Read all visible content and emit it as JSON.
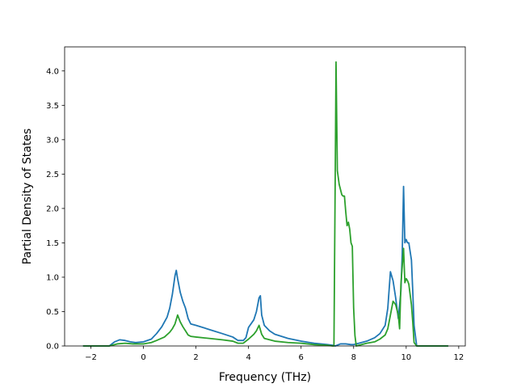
{
  "chart_data": {
    "type": "line",
    "title": "",
    "xlabel": "Frequency (THz)",
    "ylabel": "Partial Density of States",
    "xlim": [
      -3.0,
      12.25
    ],
    "ylim": [
      0.0,
      4.35
    ],
    "xticks": [
      -2,
      0,
      2,
      4,
      6,
      8,
      10,
      12
    ],
    "xtick_labels": [
      "−2",
      "0",
      "2",
      "4",
      "6",
      "8",
      "10",
      "12"
    ],
    "yticks": [
      0.0,
      0.5,
      1.0,
      1.5,
      2.0,
      2.5,
      3.0,
      3.5,
      4.0
    ],
    "ytick_labels": [
      "0.0",
      "0.5",
      "1.0",
      "1.5",
      "2.0",
      "2.5",
      "3.0",
      "3.5",
      "4.0"
    ],
    "grid": false,
    "legend": "none",
    "series": [
      {
        "color": "#1f77b4",
        "x": [
          -2.3,
          -1.3,
          -1.1,
          -0.9,
          -0.7,
          -0.5,
          -0.3,
          0.0,
          0.3,
          0.5,
          0.7,
          0.9,
          1.0,
          1.1,
          1.2,
          1.25,
          1.3,
          1.4,
          1.5,
          1.6,
          1.7,
          1.8,
          2.0,
          2.5,
          3.0,
          3.4,
          3.6,
          3.8,
          3.9,
          4.0,
          4.2,
          4.3,
          4.4,
          4.45,
          4.5,
          4.6,
          4.8,
          5.0,
          5.5,
          6.0,
          6.5,
          7.0,
          7.2,
          7.3,
          7.5,
          7.7,
          7.9,
          8.0,
          8.2,
          8.5,
          8.8,
          9.0,
          9.2,
          9.3,
          9.4,
          9.5,
          9.6,
          9.7,
          9.8,
          9.85,
          9.9,
          9.95,
          10.0,
          10.05,
          10.1,
          10.2,
          10.25,
          10.3,
          10.4,
          10.5,
          11.6
        ],
        "values": [
          0.0,
          0.0,
          0.06,
          0.09,
          0.08,
          0.06,
          0.05,
          0.06,
          0.1,
          0.18,
          0.28,
          0.42,
          0.55,
          0.75,
          1.02,
          1.1,
          0.98,
          0.78,
          0.65,
          0.55,
          0.4,
          0.32,
          0.3,
          0.24,
          0.18,
          0.13,
          0.08,
          0.08,
          0.12,
          0.27,
          0.38,
          0.5,
          0.7,
          0.73,
          0.45,
          0.3,
          0.22,
          0.17,
          0.11,
          0.07,
          0.04,
          0.02,
          0.01,
          0.0,
          0.03,
          0.03,
          0.02,
          0.02,
          0.04,
          0.07,
          0.12,
          0.18,
          0.3,
          0.55,
          1.08,
          0.95,
          0.7,
          0.4,
          0.8,
          1.35,
          2.32,
          1.5,
          1.55,
          1.5,
          1.5,
          1.25,
          0.8,
          0.3,
          0.0,
          0.0,
          0.0
        ]
      },
      {
        "color": "#2ca02c",
        "x": [
          -2.3,
          -1.3,
          -1.0,
          -0.7,
          -0.4,
          0.0,
          0.3,
          0.5,
          0.8,
          1.0,
          1.1,
          1.2,
          1.3,
          1.4,
          1.5,
          1.6,
          1.7,
          1.8,
          2.0,
          2.5,
          3.0,
          3.4,
          3.6,
          3.8,
          4.0,
          4.2,
          4.3,
          4.4,
          4.5,
          4.6,
          5.0,
          5.5,
          6.0,
          6.5,
          7.0,
          7.2,
          7.25,
          7.3,
          7.33,
          7.38,
          7.45,
          7.55,
          7.6,
          7.65,
          7.7,
          7.75,
          7.8,
          7.85,
          7.9,
          7.95,
          8.0,
          8.05,
          8.1,
          8.2,
          8.5,
          8.8,
          9.0,
          9.2,
          9.3,
          9.4,
          9.5,
          9.6,
          9.7,
          9.75,
          9.8,
          9.9,
          9.95,
          10.0,
          10.05,
          10.1,
          10.2,
          10.25,
          10.3,
          10.4,
          10.5,
          11.6
        ],
        "values": [
          0.0,
          0.0,
          0.03,
          0.04,
          0.03,
          0.03,
          0.05,
          0.08,
          0.13,
          0.2,
          0.25,
          0.32,
          0.45,
          0.35,
          0.28,
          0.22,
          0.16,
          0.14,
          0.13,
          0.11,
          0.09,
          0.07,
          0.04,
          0.04,
          0.1,
          0.17,
          0.22,
          0.3,
          0.17,
          0.11,
          0.07,
          0.05,
          0.04,
          0.02,
          0.01,
          0.0,
          0.0,
          2.5,
          4.13,
          2.55,
          2.35,
          2.2,
          2.18,
          2.18,
          1.95,
          1.75,
          1.8,
          1.7,
          1.5,
          1.45,
          0.55,
          0.15,
          0.0,
          0.01,
          0.04,
          0.06,
          0.1,
          0.16,
          0.25,
          0.45,
          0.65,
          0.6,
          0.45,
          0.25,
          0.9,
          1.42,
          0.92,
          0.98,
          0.95,
          0.9,
          0.6,
          0.35,
          0.05,
          0.0,
          0.0,
          0.0
        ]
      }
    ]
  }
}
